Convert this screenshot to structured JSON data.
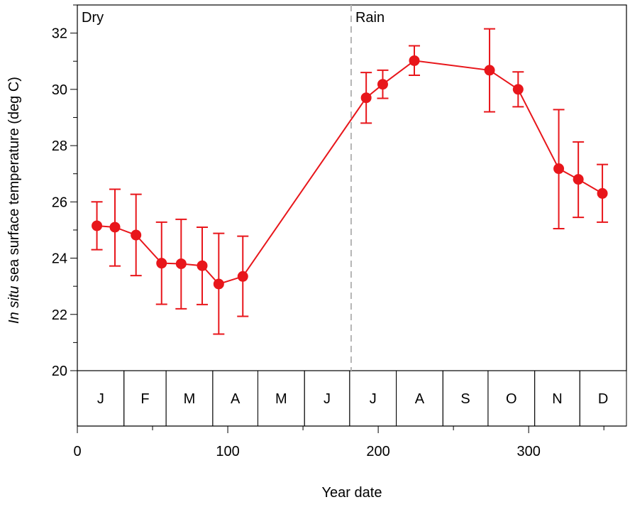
{
  "chart_data": {
    "type": "line",
    "xlabel": "Year date",
    "ylabel_italic": "In situ",
    "ylabel_rest": " sea surface temperature (deg C)",
    "xlim": [
      0,
      365
    ],
    "ylim": [
      20,
      33
    ],
    "x_ticks": [
      0,
      100,
      200,
      300
    ],
    "y_ticks": [
      20,
      22,
      24,
      26,
      28,
      30,
      32
    ],
    "period_labels": [
      {
        "text": "Dry",
        "x": 0
      },
      {
        "text": "Rain",
        "x": 182
      }
    ],
    "divider_x": 182,
    "months": [
      {
        "label": "J",
        "start": 0,
        "end": 31
      },
      {
        "label": "F",
        "start": 31,
        "end": 59
      },
      {
        "label": "M",
        "start": 59,
        "end": 90
      },
      {
        "label": "A",
        "start": 90,
        "end": 120
      },
      {
        "label": "M",
        "start": 120,
        "end": 151
      },
      {
        "label": "J",
        "start": 151,
        "end": 181
      },
      {
        "label": "J",
        "start": 181,
        "end": 212
      },
      {
        "label": "A",
        "start": 212,
        "end": 243
      },
      {
        "label": "S",
        "start": 243,
        "end": 273
      },
      {
        "label": "O",
        "start": 273,
        "end": 304
      },
      {
        "label": "N",
        "start": 304,
        "end": 334
      },
      {
        "label": "D",
        "start": 334,
        "end": 365
      }
    ],
    "series": [
      {
        "color": "#e8161b",
        "points": [
          {
            "x": 13,
            "y": 25.15,
            "lo": 24.3,
            "hi": 26.0
          },
          {
            "x": 25,
            "y": 25.1,
            "lo": 23.72,
            "hi": 26.45
          },
          {
            "x": 39,
            "y": 24.82,
            "lo": 23.38,
            "hi": 26.27
          },
          {
            "x": 56,
            "y": 23.82,
            "lo": 22.36,
            "hi": 25.28
          },
          {
            "x": 69,
            "y": 23.8,
            "lo": 22.2,
            "hi": 25.38
          },
          {
            "x": 83,
            "y": 23.73,
            "lo": 22.35,
            "hi": 25.1
          },
          {
            "x": 94,
            "y": 23.08,
            "lo": 21.3,
            "hi": 24.88
          },
          {
            "x": 110,
            "y": 23.35,
            "lo": 21.93,
            "hi": 24.78
          },
          {
            "x": 192,
            "y": 29.7,
            "lo": 28.8,
            "hi": 30.6
          },
          {
            "x": 203,
            "y": 30.18,
            "lo": 29.68,
            "hi": 30.68
          },
          {
            "x": 224,
            "y": 31.02,
            "lo": 30.5,
            "hi": 31.55
          },
          {
            "x": 274,
            "y": 30.68,
            "lo": 29.2,
            "hi": 32.15
          },
          {
            "x": 293,
            "y": 30.0,
            "lo": 29.38,
            "hi": 30.62
          },
          {
            "x": 320,
            "y": 27.18,
            "lo": 25.05,
            "hi": 29.28
          },
          {
            "x": 333,
            "y": 26.8,
            "lo": 25.45,
            "hi": 28.13
          },
          {
            "x": 349,
            "y": 26.3,
            "lo": 25.28,
            "hi": 27.33
          }
        ]
      }
    ]
  }
}
